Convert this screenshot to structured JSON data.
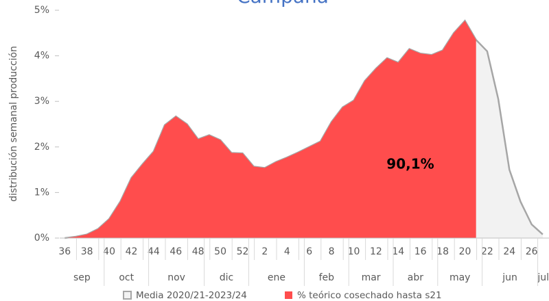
{
  "chart_data": {
    "type": "area",
    "title": "Campaña",
    "y_label": "distribución semanal producción",
    "categories": [
      "36",
      null,
      "38",
      null,
      "40",
      null,
      "42",
      null,
      "44",
      null,
      "46",
      null,
      "48",
      null,
      "50",
      null,
      "52",
      null,
      "2",
      null,
      "4",
      null,
      "6",
      null,
      "8",
      null,
      "10",
      null,
      "12",
      null,
      "14",
      null,
      "16",
      null,
      "18",
      null,
      "20",
      null,
      "22",
      null,
      "24",
      null,
      "26",
      null
    ],
    "months": [
      {
        "label": "sep",
        "span": 4
      },
      {
        "label": "oct",
        "span": 4
      },
      {
        "label": "nov",
        "span": 5
      },
      {
        "label": "dic",
        "span": 4
      },
      {
        "label": "ene",
        "span": 5
      },
      {
        "label": "feb",
        "span": 4
      },
      {
        "label": "mar",
        "span": 4
      },
      {
        "label": "abr",
        "span": 4
      },
      {
        "label": "may",
        "span": 4
      },
      {
        "label": "jun",
        "span": 5
      },
      {
        "label": "jul",
        "span": 1
      }
    ],
    "series": [
      {
        "name": "Media 2020/21-2023/24",
        "color": "#a6a6a6",
        "fill": "#f2f2f2",
        "values": [
          0,
          0.03,
          0.08,
          0.2,
          0.42,
          0.8,
          1.32,
          1.62,
          1.9,
          2.48,
          2.67,
          2.5,
          2.17,
          2.26,
          2.15,
          1.87,
          1.86,
          1.57,
          1.54,
          1.67,
          1.77,
          1.88,
          2.0,
          2.12,
          2.55,
          2.87,
          3.02,
          3.45,
          3.72,
          3.95,
          3.85,
          4.15,
          4.05,
          4.02,
          4.12,
          4.5,
          4.77,
          4.35,
          4.1,
          3.05,
          1.5,
          0.8,
          0.3,
          0.08
        ]
      },
      {
        "name": "% teórico cosechado hasta s21",
        "color": "#ff4d4d",
        "fill": "#ff4d4d",
        "values": [
          0,
          0.03,
          0.08,
          0.2,
          0.42,
          0.8,
          1.32,
          1.62,
          1.9,
          2.48,
          2.67,
          2.5,
          2.17,
          2.26,
          2.15,
          1.87,
          1.86,
          1.57,
          1.54,
          1.67,
          1.77,
          1.88,
          2.0,
          2.12,
          2.55,
          2.87,
          3.02,
          3.45,
          3.72,
          3.95,
          3.85,
          4.15,
          4.05,
          4.02,
          4.12,
          4.5,
          4.77,
          4.35,
          null,
          null,
          null,
          null,
          null,
          null
        ]
      }
    ],
    "annotation": "90,1%",
    "ylim": [
      0,
      5
    ],
    "yticks": [
      {
        "value": 0,
        "label": "0%"
      },
      {
        "value": 1,
        "label": "1%"
      },
      {
        "value": 2,
        "label": "2%"
      },
      {
        "value": 3,
        "label": "3%"
      },
      {
        "value": 4,
        "label": "4%"
      },
      {
        "value": 5,
        "label": "5%"
      }
    ],
    "grid": false,
    "legend": "bottom"
  }
}
